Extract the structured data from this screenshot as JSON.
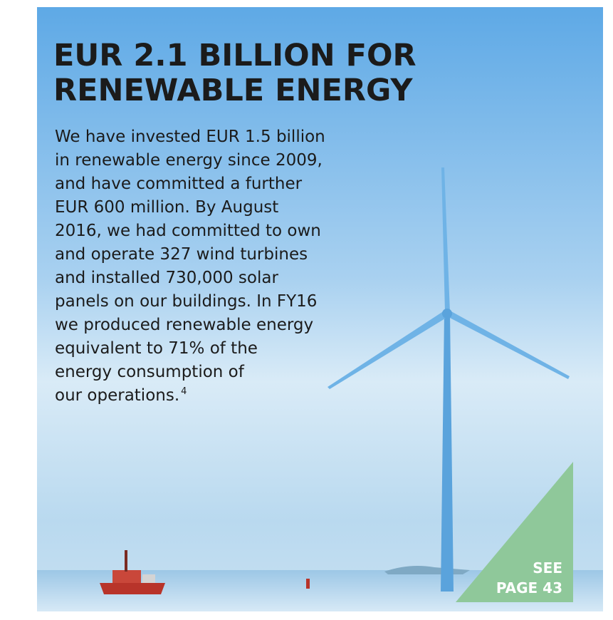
{
  "title": {
    "lines": [
      "EUR 2.1 BILLION FOR",
      "RENEWABLE ENERGY"
    ]
  },
  "body": {
    "lines": [
      "We have invested EUR 1.5 billion",
      "in renewable energy since 2009,",
      "and have committed a further",
      "EUR 600 million. By August",
      "2016, we had committed to own",
      "and operate 327 wind turbines",
      "and installed 730,000 solar",
      "panels on our buildings. In FY16",
      "we produced renewable energy",
      "equivalent to 71% of the",
      "energy consumption of",
      "our operations."
    ],
    "footnote": "4"
  },
  "callout": {
    "lines": [
      "SEE",
      "PAGE 43"
    ]
  }
}
